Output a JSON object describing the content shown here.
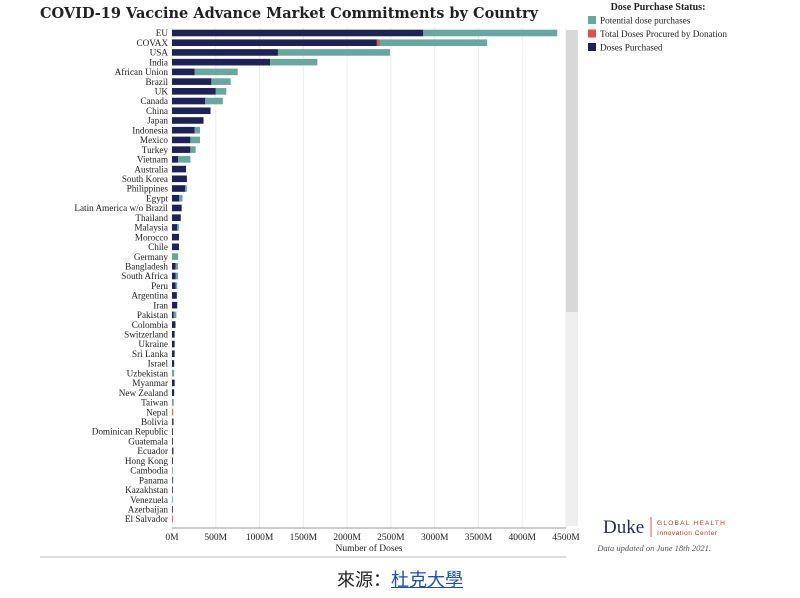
{
  "title": "COVID-19 Vaccine Advance Market Commitments by Country",
  "legend": {
    "title": "Dose Purchase Status:",
    "items": [
      {
        "label": "Potential dose purchases",
        "color": "#6aa6a0"
      },
      {
        "label": "Total Doses Procured by Donation",
        "color": "#d9534f"
      },
      {
        "label": "Doses Purchased",
        "color": "#1e2356"
      }
    ]
  },
  "chart_data": {
    "type": "bar",
    "orientation": "horizontal",
    "stacked": true,
    "categories": [
      "EU",
      "COVAX",
      "USA",
      "India",
      "African Union",
      "Brazil",
      "UK",
      "Canada",
      "China",
      "Japan",
      "Indonesia",
      "Mexico",
      "Turkey",
      "Vietnam",
      "Australia",
      "South Korea",
      "Philippines",
      "Egypt",
      "Latin America w/o Brazil",
      "Thailand",
      "Malaysia",
      "Morocco",
      "Chile",
      "Germany",
      "Bangladesh",
      "South Africa",
      "Peru",
      "Argentina",
      "Iran",
      "Pakistan",
      "Colombia",
      "Switzerland",
      "Ukraine",
      "Sri Lanka",
      "Israel",
      "Uzbekistan",
      "Myanmar",
      "New Zealand",
      "Taiwan",
      "Nepal",
      "Bolivia",
      "Dominican Republic",
      "Guatemala",
      "Ecuador",
      "Hong Kong",
      "Cambodia",
      "Panama",
      "Kazakhstan",
      "Venezuela",
      "Azerbaijan",
      "El Salvador"
    ],
    "series": [
      {
        "name": "Doses Purchased",
        "color": "#1e2356",
        "values": [
          2870,
          2340,
          1210,
          1120,
          260,
          450,
          500,
          380,
          440,
          360,
          260,
          210,
          210,
          70,
          160,
          170,
          150,
          80,
          110,
          100,
          60,
          80,
          80,
          0,
          40,
          40,
          40,
          55,
          60,
          20,
          40,
          30,
          30,
          30,
          25,
          0,
          30,
          25,
          0,
          0,
          10,
          10,
          10,
          10,
          10,
          0,
          5,
          5,
          0,
          5,
          0
        ]
      },
      {
        "name": "Total Doses Procured by Donation",
        "color": "#d9534f",
        "values": [
          0,
          30,
          0,
          0,
          0,
          0,
          0,
          0,
          0,
          0,
          0,
          0,
          0,
          0,
          0,
          0,
          0,
          0,
          0,
          0,
          0,
          0,
          0,
          0,
          0,
          0,
          0,
          0,
          0,
          0,
          0,
          0,
          0,
          0,
          0,
          0,
          0,
          0,
          0,
          10,
          10,
          0,
          0,
          5,
          0,
          0,
          0,
          0,
          0,
          0,
          5
        ]
      },
      {
        "name": "Potential dose purchases",
        "color": "#6aa6a0",
        "values": [
          1530,
          1230,
          1280,
          540,
          490,
          220,
          120,
          200,
          0,
          0,
          60,
          110,
          60,
          140,
          0,
          0,
          20,
          40,
          0,
          0,
          20,
          0,
          0,
          70,
          30,
          30,
          20,
          0,
          0,
          30,
          0,
          0,
          0,
          0,
          0,
          25,
          0,
          0,
          20,
          0,
          0,
          0,
          0,
          0,
          0,
          5,
          5,
          0,
          5,
          0,
          0
        ]
      }
    ],
    "xlabel": "Number of Doses",
    "xticks": [
      "0M",
      "500M",
      "1000M",
      "1500M",
      "2000M",
      "2500M",
      "3000M",
      "3500M",
      "4000M",
      "4500M"
    ],
    "xlim": [
      0,
      4500
    ],
    "legend_position": "top-right"
  },
  "logo": {
    "name": "Duke",
    "line1": "GLOBAL HEALTH",
    "line2": "Innovation Center"
  },
  "updated_note": "Data updated on June 18th 2021.",
  "footer": {
    "prefix": "來源：",
    "link": "杜克大學"
  }
}
